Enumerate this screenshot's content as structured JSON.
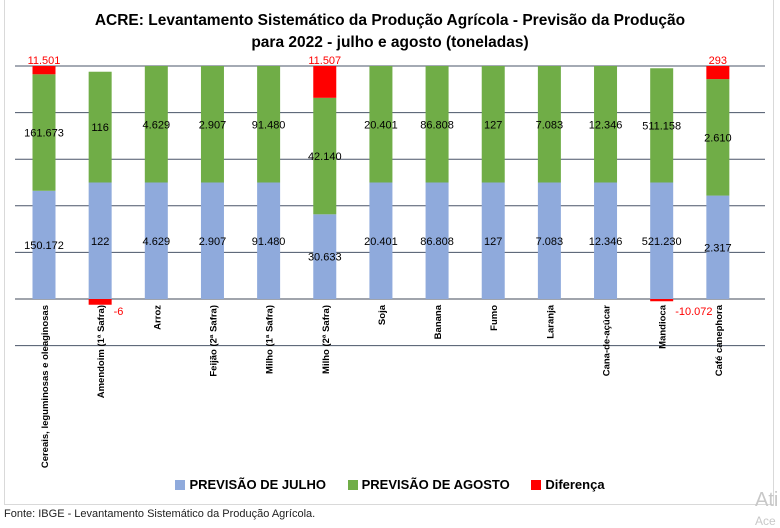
{
  "chart_data": {
    "type": "bar",
    "stacking": "percent",
    "title": "ACRE: Levantamento Sistemático da Produção Agrícola - Previsão da Produção para 2022 - julho e agosto (toneladas)",
    "title_lines": [
      "ACRE: Levantamento Sistemático da Produção Agrícola - Previsão da Produção",
      "para 2022 - julho e agosto (toneladas)"
    ],
    "categories": [
      "Cereais, leguminosas e oleaginosas",
      "Amendoim (1ª Safra)",
      "Arroz",
      "Feijão (2ª Safra)",
      "Milho (1ª Safra)",
      "Milho (2ª Safra)",
      "Soja",
      "Banana",
      "Fumo",
      "Laranja",
      "Cana-de-açúcar",
      "Mandioca",
      "Café canephora"
    ],
    "series": [
      {
        "name": "PREVISÃO DE JULHO",
        "color": "#8faadc",
        "values": [
          150172,
          122,
          4629,
          2907,
          91480,
          30633,
          20401,
          86808,
          127,
          7083,
          12346,
          521230,
          2317
        ]
      },
      {
        "name": "PREVISÃO DE AGOSTO",
        "color": "#70ad47",
        "values": [
          161673,
          116,
          4629,
          2907,
          91480,
          42140,
          20401,
          86808,
          127,
          7083,
          12346,
          511158,
          2610
        ]
      },
      {
        "name": "Diferença",
        "color": "#ff0000",
        "values": [
          11501,
          -6,
          0,
          0,
          0,
          11507,
          0,
          0,
          0,
          0,
          0,
          -10072,
          293
        ]
      }
    ],
    "ylim": [
      -20,
      100
    ],
    "y_unit": "percent",
    "y_tick_labels_shown": false,
    "grid": true,
    "legend": "bottom"
  },
  "source": "Fonte: IBGE - Levantamento Sistemático da Produção Agrícola.",
  "watermark": {
    "line1": "Ati",
    "line2": "Ace"
  }
}
